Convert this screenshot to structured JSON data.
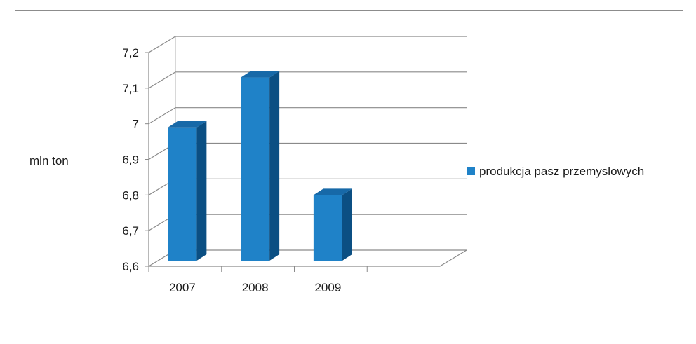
{
  "chart_data": {
    "type": "bar",
    "style": "3d-column",
    "categories": [
      "2007",
      "2008",
      "2009"
    ],
    "series": [
      {
        "name": "produkcja pasz przemyslowych",
        "values": [
          6.99,
          7.13,
          6.8
        ],
        "color": "#1f82c8"
      }
    ],
    "title": "",
    "xlabel": "",
    "ylabel": "mln ton",
    "ylim": [
      6.6,
      7.2
    ],
    "yticks": [
      6.6,
      6.7,
      6.8,
      6.9,
      7.0,
      7.1,
      7.2
    ],
    "ytick_labels": [
      "6,6",
      "6,7",
      "6,8",
      "6,9",
      "7",
      "7,1",
      "7,2"
    ],
    "grid": true,
    "legend_position": "right"
  }
}
